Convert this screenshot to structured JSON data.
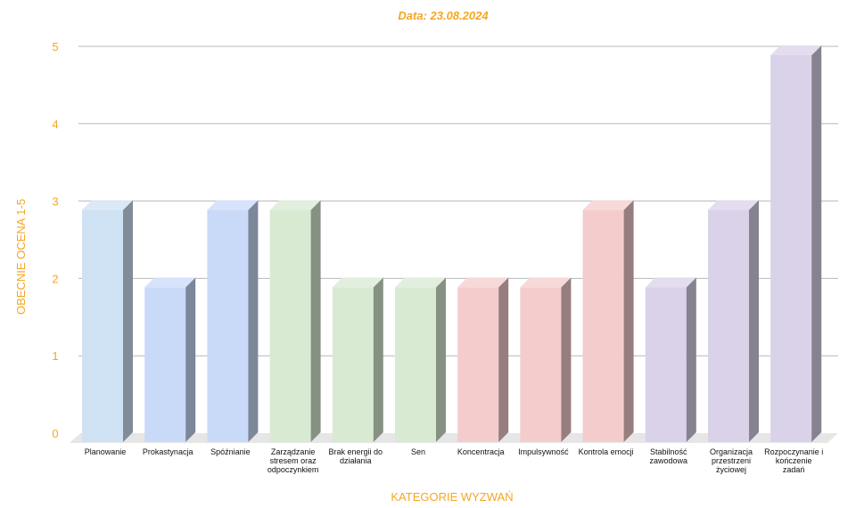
{
  "colors": {
    "accent": "#f5a623",
    "grid": "#b8b8b8",
    "floor": "#e6e6e6",
    "tick_text": "#f5a623"
  },
  "chart_data": {
    "type": "bar",
    "title": "Data: 23.08.2024",
    "xlabel": "KATEGORIE WYZWAŃ",
    "ylabel": "OBECNIE OCENA 1-5",
    "ylim": [
      0,
      5
    ],
    "yticks": [
      "0",
      "1",
      "2",
      "3",
      "4",
      "5"
    ],
    "grid": true,
    "categories": [
      [
        "Planowanie"
      ],
      [
        "Prokastynacja"
      ],
      [
        "Spóźnianie"
      ],
      [
        "Zarządzanie",
        "stresem oraz",
        "odpoczynkiem"
      ],
      [
        "Brak energii do",
        "działania"
      ],
      [
        "Sen"
      ],
      [
        "Koncentracja"
      ],
      [
        "Impulsywność"
      ],
      [
        "Kontrola emocji"
      ],
      [
        "Stabilność",
        "zawodowa"
      ],
      [
        "Organizacja",
        "przestrzeni",
        "życiowej"
      ],
      [
        "Rozpoczynanie i",
        "kończenie",
        "zadań"
      ]
    ],
    "values": [
      3,
      2,
      3,
      3,
      2,
      2,
      2,
      2,
      3,
      2,
      3,
      5
    ],
    "bar_colors": [
      "#cfe2f3",
      "#c9daf8",
      "#c9daf8",
      "#d9ead3",
      "#d9ead3",
      "#d9ead3",
      "#f4cccc",
      "#f4cccc",
      "#f4cccc",
      "#d9d2e9",
      "#d9d2e9",
      "#d9d2e9"
    ]
  }
}
